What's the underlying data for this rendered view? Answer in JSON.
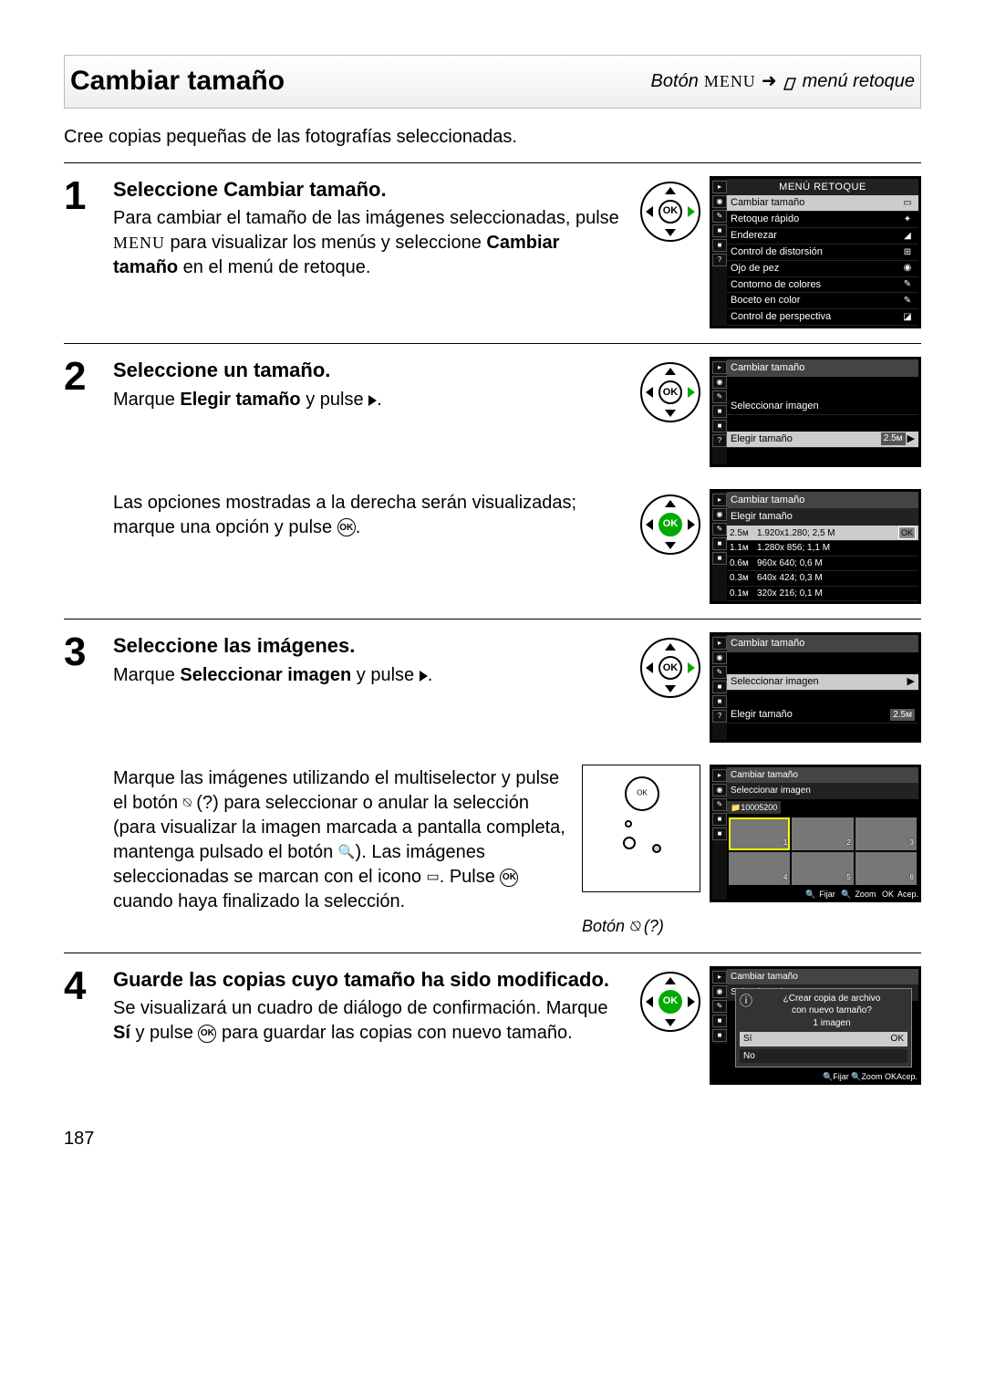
{
  "header": {
    "title": "Cambiar tamaño",
    "path_prefix": "Botón",
    "menu_word": "MENU",
    "arrow": "➜",
    "path_suffix": "menú retoque"
  },
  "intro": "Cree copias pequeñas de las fotografías seleccionadas.",
  "steps": {
    "s1": {
      "num": "1",
      "title": "Seleccione Cambiar tamaño.",
      "text_a": "Para cambiar el tamaño de las imágenes seleccionadas, pulse ",
      "menu_word": "MENU",
      "text_b": " para visualizar los menús y seleccione ",
      "bold": "Cambiar tamaño",
      "text_c": " en el menú de retoque."
    },
    "s2": {
      "num": "2",
      "title": "Seleccione un tamaño.",
      "line1_a": "Marque ",
      "line1_bold": "Elegir tamaño",
      "line1_b": " y pulse ",
      "sub_a": "Las opciones mostradas a la derecha serán visualizadas; marque una opción y pulse "
    },
    "s3": {
      "num": "3",
      "title": "Seleccione las imágenes.",
      "line1_a": "Marque ",
      "line1_bold": "Seleccionar imagen",
      "line1_b": " y pulse ",
      "p2_a": "Marque las imágenes utilizando el multiselector y pulse el botón ",
      "p2_q": " (?) ",
      "p2_b": "para seleccionar o anular la selección (para visualizar la imagen marcada a pantalla completa, mantenga pulsado el botón ",
      "p2_c": "). Las imágenes seleccionadas se marcan con el icono ",
      "p2_d": ".  Pulse ",
      "p2_e": " cuando haya finalizado la selección.",
      "caption_a": "Botón ",
      "caption_b": " (?)"
    },
    "s4": {
      "num": "4",
      "title": "Guarde las copias cuyo tamaño ha sido modificado.",
      "text_a": "Se visualizará un cuadro de diálogo de confirmación.  Marque ",
      "bold": "Sí",
      "text_b": " y pulse ",
      "text_c": " para guardar las copias con nuevo tamaño."
    }
  },
  "lcd1": {
    "title": "MENÚ RETOQUE",
    "items": [
      {
        "label": "Cambiar tamaño",
        "icon": "▭",
        "sel": true
      },
      {
        "label": "Retoque rápido",
        "icon": "✦",
        "sel": false
      },
      {
        "label": "Enderezar",
        "icon": "◢",
        "sel": false
      },
      {
        "label": "Control de distorsión",
        "icon": "⊞",
        "sel": false
      },
      {
        "label": "Ojo de pez",
        "icon": "◉",
        "sel": false
      },
      {
        "label": "Contorno de colores",
        "icon": "✎",
        "sel": false
      },
      {
        "label": "Boceto en color",
        "icon": "✎",
        "sel": false
      },
      {
        "label": "Control de perspectiva",
        "icon": "◪",
        "sel": false
      }
    ]
  },
  "lcd2": {
    "title": "Cambiar tamaño",
    "row1": "Seleccionar imagen",
    "row2": "Elegir tamaño",
    "row2_val": "2.5ᴍ",
    "arrow": "▶"
  },
  "lcd3": {
    "title": "Cambiar tamaño",
    "subtitle": "Elegir tamaño",
    "rows": [
      {
        "sz": "2.5ᴍ",
        "res": "1.920x1.280; 2,5 M",
        "sel": true,
        "ok": true
      },
      {
        "sz": "1.1ᴍ",
        "res": "1.280x 856; 1,1 M",
        "sel": false
      },
      {
        "sz": "0.6ᴍ",
        "res": " 960x 640; 0,6 M",
        "sel": false
      },
      {
        "sz": "0.3ᴍ",
        "res": " 640x 424; 0,3 M",
        "sel": false
      },
      {
        "sz": "0.1ᴍ",
        "res": " 320x 216; 0,1 M",
        "sel": false
      }
    ]
  },
  "lcd4": {
    "title": "Cambiar tamaño",
    "row1": "Seleccionar imagen",
    "row1_arrow": "▶",
    "row2": "Elegir tamaño",
    "row2_val": "2.5ᴍ"
  },
  "lcd5": {
    "title": "Cambiar tamaño",
    "subtitle": "Seleccionar imagen",
    "folder": "📁10005200",
    "thumbs": [
      "1",
      "2",
      "3",
      "4",
      "5",
      "6"
    ],
    "footer": {
      "fijar": "Fijar",
      "zoom": "Zoom",
      "acep": "Acep."
    }
  },
  "lcd6": {
    "title": "Cambiar tamaño",
    "subtitle": "Seleccionar imagen",
    "dlg_line1": "¿Crear copia de archivo",
    "dlg_line2": "con nuevo tamaño?",
    "dlg_count": "1   imagen",
    "opt_yes": "Sí",
    "opt_no": "No",
    "ok": "OK",
    "footer": {
      "fijar": "Fijar",
      "zoom": "Zoom",
      "acep": "Acep."
    }
  },
  "dial": {
    "ok": "OK"
  },
  "page_num": "187"
}
